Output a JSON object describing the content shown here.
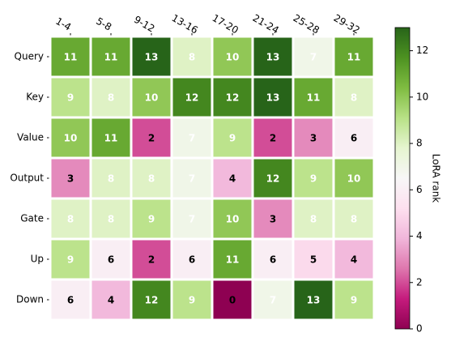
{
  "chart_data": {
    "type": "heatmap",
    "columns": [
      "1-4",
      "5-8",
      "9-12",
      "13-16",
      "17-20",
      "21-24",
      "25-28",
      "29-32"
    ],
    "rows": [
      "Query",
      "Key",
      "Value",
      "Output",
      "Gate",
      "Up",
      "Down"
    ],
    "values": [
      [
        11,
        11,
        13,
        8,
        10,
        13,
        7,
        11
      ],
      [
        9,
        8,
        10,
        12,
        12,
        13,
        11,
        8
      ],
      [
        10,
        11,
        2,
        7,
        9,
        2,
        3,
        6
      ],
      [
        3,
        8,
        8,
        7,
        4,
        12,
        9,
        10
      ],
      [
        8,
        8,
        9,
        7,
        10,
        3,
        8,
        8
      ],
      [
        9,
        6,
        2,
        6,
        11,
        6,
        5,
        4
      ],
      [
        6,
        4,
        12,
        9,
        0,
        7,
        13,
        9
      ]
    ],
    "colormap": "PiYG",
    "zlim": [
      0,
      13
    ],
    "colorbar_ticks": [
      0,
      2,
      4,
      6,
      8,
      10,
      12
    ],
    "colorbar_label": "LoRA rank"
  }
}
